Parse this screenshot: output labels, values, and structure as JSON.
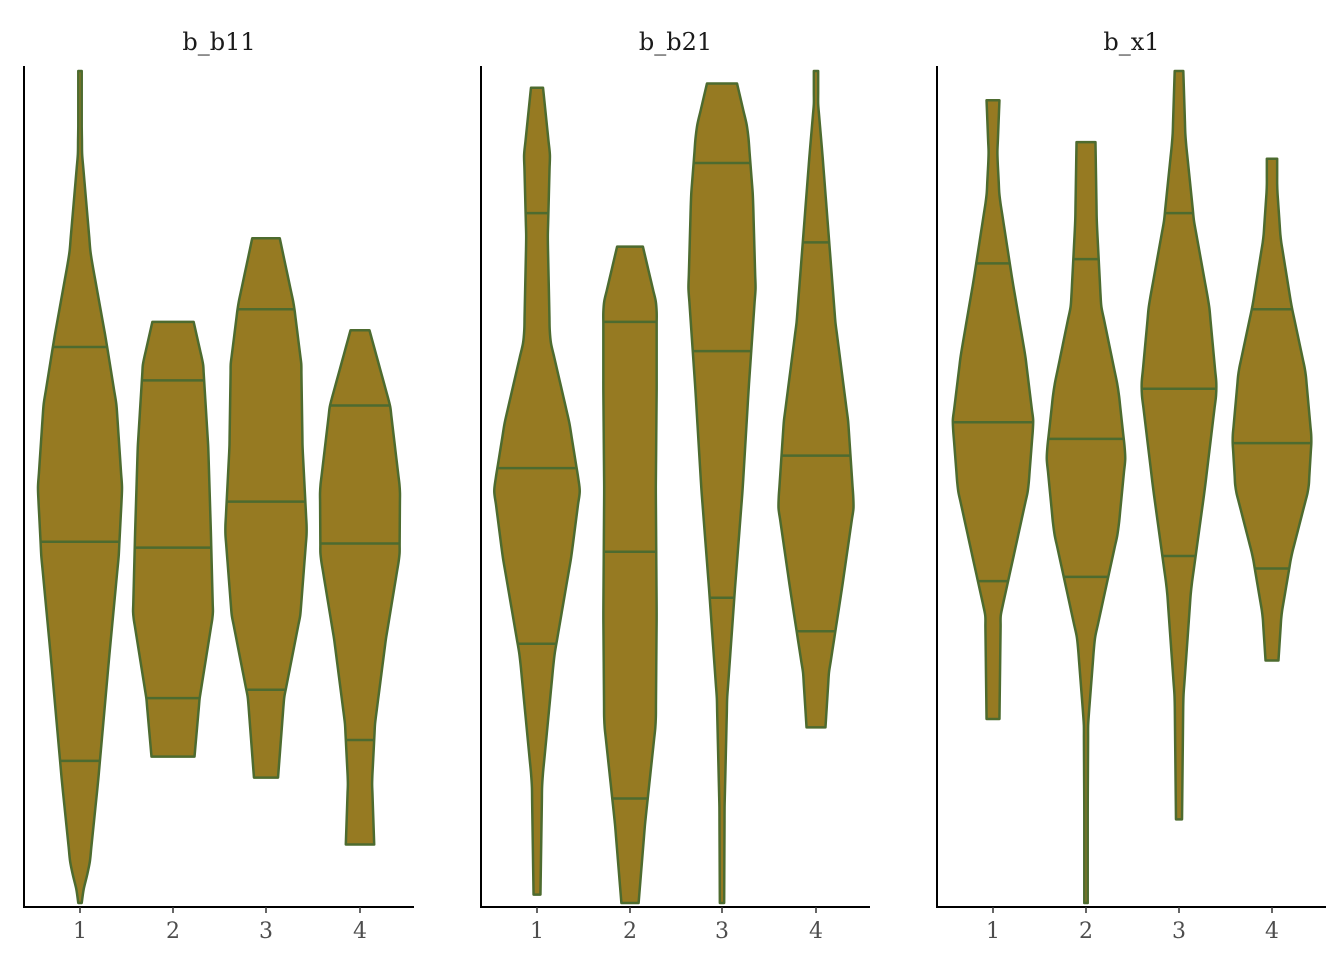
{
  "chart_data": {
    "type": "violin",
    "fill_color": "#967a22",
    "outline_color": "#4d6b2f",
    "y_axis": {
      "ticks_shown": false,
      "ylim": [
        0,
        1
      ]
    },
    "categories": [
      "1",
      "2",
      "3",
      "4"
    ],
    "quantiles": [
      0.1,
      0.5,
      0.9
    ],
    "facets": [
      {
        "title": "b_b11",
        "violins": [
          {
            "x": "1",
            "min": 0.005,
            "max": 1.0,
            "q10": 0.175,
            "q50": 0.437,
            "q90": 0.67,
            "profile": [
              [
                0.005,
                0.008
              ],
              [
                0.05,
                0.22
              ],
              [
                0.15,
                0.42
              ],
              [
                0.3,
                0.68
              ],
              [
                0.42,
                0.9
              ],
              [
                0.5,
                0.98
              ],
              [
                0.6,
                0.85
              ],
              [
                0.68,
                0.6
              ],
              [
                0.78,
                0.25
              ],
              [
                0.9,
                0.05
              ],
              [
                1.0,
                0.02
              ]
            ]
          },
          {
            "x": "2",
            "min": 0.18,
            "max": 0.7,
            "q10": 0.25,
            "q50": 0.43,
            "q90": 0.63,
            "profile": [
              [
                0.18,
                0.5
              ],
              [
                0.25,
                0.62
              ],
              [
                0.35,
                0.93
              ],
              [
                0.45,
                0.88
              ],
              [
                0.55,
                0.82
              ],
              [
                0.65,
                0.7
              ],
              [
                0.7,
                0.48
              ]
            ]
          },
          {
            "x": "3",
            "min": 0.155,
            "max": 0.8,
            "q10": 0.26,
            "q50": 0.485,
            "q90": 0.715,
            "profile": [
              [
                0.155,
                0.28
              ],
              [
                0.25,
                0.42
              ],
              [
                0.35,
                0.8
              ],
              [
                0.45,
                0.95
              ],
              [
                0.55,
                0.85
              ],
              [
                0.65,
                0.82
              ],
              [
                0.72,
                0.65
              ],
              [
                0.8,
                0.32
              ]
            ]
          },
          {
            "x": "4",
            "min": 0.075,
            "max": 0.69,
            "q10": 0.2,
            "q50": 0.435,
            "q90": 0.6,
            "profile": [
              [
                0.075,
                0.33
              ],
              [
                0.15,
                0.28
              ],
              [
                0.22,
                0.35
              ],
              [
                0.32,
                0.6
              ],
              [
                0.42,
                0.92
              ],
              [
                0.5,
                0.93
              ],
              [
                0.6,
                0.7
              ],
              [
                0.69,
                0.22
              ]
            ]
          }
        ]
      },
      {
        "title": "b_b21",
        "violins": [
          {
            "x": "1",
            "min": 0.015,
            "max": 0.98,
            "q10": 0.315,
            "q50": 0.525,
            "q90": 0.83,
            "profile": [
              [
                0.015,
                0.08
              ],
              [
                0.15,
                0.12
              ],
              [
                0.3,
                0.4
              ],
              [
                0.42,
                0.8
              ],
              [
                0.5,
                1.0
              ],
              [
                0.58,
                0.75
              ],
              [
                0.68,
                0.3
              ],
              [
                0.8,
                0.25
              ],
              [
                0.9,
                0.3
              ],
              [
                0.98,
                0.14
              ]
            ]
          },
          {
            "x": "2",
            "min": 0.005,
            "max": 0.79,
            "q10": 0.13,
            "q50": 0.425,
            "q90": 0.7,
            "profile": [
              [
                0.005,
                0.2
              ],
              [
                0.1,
                0.35
              ],
              [
                0.22,
                0.6
              ],
              [
                0.35,
                0.62
              ],
              [
                0.5,
                0.6
              ],
              [
                0.62,
                0.62
              ],
              [
                0.72,
                0.62
              ],
              [
                0.79,
                0.3
              ]
            ]
          },
          {
            "x": "3",
            "min": 0.005,
            "max": 0.985,
            "q10": 0.37,
            "q50": 0.665,
            "q90": 0.89,
            "profile": [
              [
                0.005,
                0.05
              ],
              [
                0.12,
                0.06
              ],
              [
                0.25,
                0.12
              ],
              [
                0.38,
                0.3
              ],
              [
                0.5,
                0.48
              ],
              [
                0.62,
                0.62
              ],
              [
                0.74,
                0.78
              ],
              [
                0.85,
                0.72
              ],
              [
                0.93,
                0.6
              ],
              [
                0.985,
                0.35
              ]
            ]
          },
          {
            "x": "4",
            "min": 0.215,
            "max": 1.0,
            "q10": 0.33,
            "q50": 0.54,
            "q90": 0.795,
            "profile": [
              [
                0.215,
                0.22
              ],
              [
                0.28,
                0.3
              ],
              [
                0.38,
                0.6
              ],
              [
                0.48,
                0.88
              ],
              [
                0.58,
                0.75
              ],
              [
                0.7,
                0.45
              ],
              [
                0.8,
                0.3
              ],
              [
                0.9,
                0.15
              ],
              [
                0.96,
                0.05
              ],
              [
                1.0,
                0.05
              ]
            ]
          }
        ]
      },
      {
        "title": "b_x1",
        "violins": [
          {
            "x": "1",
            "min": 0.225,
            "max": 0.965,
            "q10": 0.39,
            "q50": 0.58,
            "q90": 0.77,
            "profile": [
              [
                0.225,
                0.15
              ],
              [
                0.35,
                0.18
              ],
              [
                0.42,
                0.48
              ],
              [
                0.5,
                0.82
              ],
              [
                0.58,
                0.94
              ],
              [
                0.66,
                0.75
              ],
              [
                0.75,
                0.45
              ],
              [
                0.85,
                0.15
              ],
              [
                0.9,
                0.1
              ],
              [
                0.965,
                0.15
              ]
            ]
          },
          {
            "x": "2",
            "min": 0.005,
            "max": 0.915,
            "q10": 0.395,
            "q50": 0.56,
            "q90": 0.775,
            "profile": [
              [
                0.005,
                0.04
              ],
              [
                0.12,
                0.04
              ],
              [
                0.22,
                0.05
              ],
              [
                0.32,
                0.2
              ],
              [
                0.45,
                0.75
              ],
              [
                0.54,
                0.92
              ],
              [
                0.62,
                0.75
              ],
              [
                0.72,
                0.35
              ],
              [
                0.82,
                0.25
              ],
              [
                0.915,
                0.22
              ]
            ]
          },
          {
            "x": "3",
            "min": 0.105,
            "max": 1.0,
            "q10": 0.42,
            "q50": 0.62,
            "q90": 0.83,
            "profile": [
              [
                0.105,
                0.07
              ],
              [
                0.25,
                0.1
              ],
              [
                0.38,
                0.28
              ],
              [
                0.5,
                0.6
              ],
              [
                0.62,
                0.88
              ],
              [
                0.72,
                0.7
              ],
              [
                0.82,
                0.35
              ],
              [
                0.92,
                0.15
              ],
              [
                1.0,
                0.1
              ]
            ]
          },
          {
            "x": "4",
            "min": 0.295,
            "max": 0.895,
            "q10": 0.405,
            "q50": 0.555,
            "q90": 0.715,
            "profile": [
              [
                0.295,
                0.15
              ],
              [
                0.35,
                0.22
              ],
              [
                0.42,
                0.45
              ],
              [
                0.5,
                0.85
              ],
              [
                0.56,
                0.92
              ],
              [
                0.64,
                0.78
              ],
              [
                0.72,
                0.45
              ],
              [
                0.8,
                0.2
              ],
              [
                0.86,
                0.12
              ],
              [
                0.895,
                0.12
              ]
            ]
          }
        ]
      }
    ]
  }
}
